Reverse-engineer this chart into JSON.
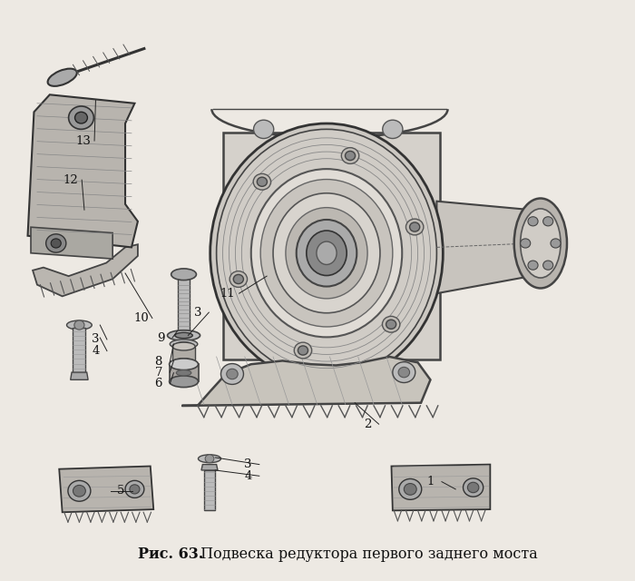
{
  "caption_bold": "Рис. 63.",
  "caption_text": " Подвеска редуктора первого заднего моста",
  "bg_color": "#ede9e3",
  "fig_width": 7.0,
  "fig_height": 6.4,
  "dpi": 100
}
